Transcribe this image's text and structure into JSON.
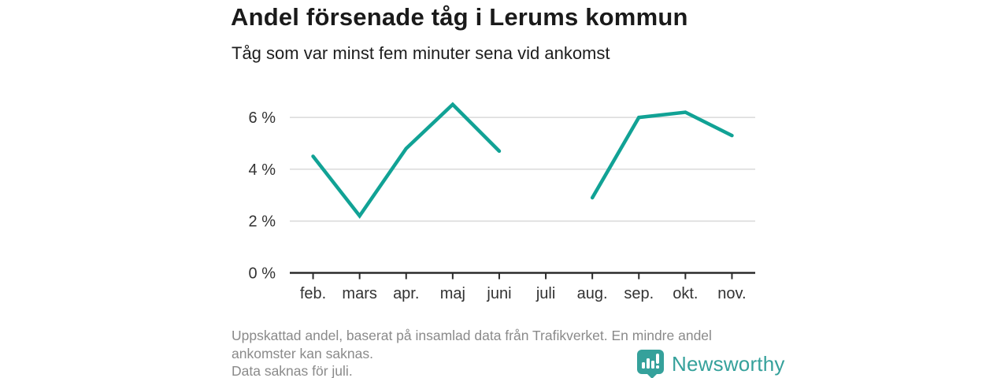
{
  "header": {
    "title": "Andel försenade tåg i Lerums kommun",
    "subtitle": "Tåg som var minst fem minuter sena vid ankomst"
  },
  "chart_data": {
    "type": "line",
    "categories": [
      "feb.",
      "mars",
      "apr.",
      "maj",
      "juni",
      "juli",
      "aug.",
      "sep.",
      "okt.",
      "nov."
    ],
    "values": [
      4.5,
      2.2,
      4.8,
      6.5,
      4.7,
      null,
      2.9,
      6.0,
      6.2,
      5.3
    ],
    "missing_categories": [
      "juli"
    ],
    "y_ticks": [
      0,
      2,
      4,
      6
    ],
    "y_tick_suffix": " %",
    "ylim": [
      0,
      6.8
    ],
    "title": "Andel försenade tåg i Lerums kommun",
    "xlabel": "",
    "ylabel": "",
    "grid": true,
    "legend": "none",
    "line_color": "#11a295",
    "axis_color": "#2b2b2b",
    "grid_color": "#d9d9d9"
  },
  "footer": {
    "lines": [
      "Uppskattad andel, baserat på insamlad data från Trafikverket. En mindre andel",
      "ankomster kan saknas.",
      "Data saknas för juli."
    ],
    "brand": "Newsworthy",
    "brand_color": "#35a19b"
  }
}
